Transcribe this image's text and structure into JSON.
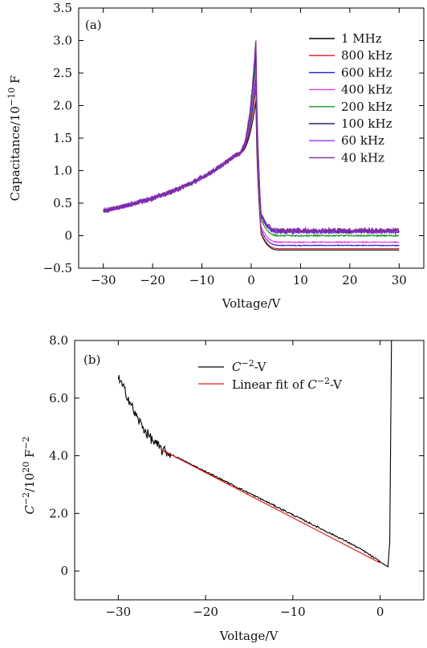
{
  "chart_data": [
    {
      "panel": "(a)",
      "type": "line",
      "xlabel": "Voltage/V",
      "ylabel_main": "Capacitance/10",
      "ylabel_exp": "−10",
      "ylabel_unit": " F",
      "xlim": [
        -35,
        35
      ],
      "ylim": [
        -0.5,
        3.5
      ],
      "xticks": [
        -30,
        -20,
        -10,
        0,
        10,
        20,
        30
      ],
      "xtick_labels": [
        "−30",
        "−20",
        "−10",
        "0",
        "10",
        "20",
        "30"
      ],
      "yticks": [
        -0.5,
        0,
        0.5,
        1.0,
        1.5,
        2.0,
        2.5,
        3.0,
        3.5
      ],
      "ytick_labels": [
        "−0.5",
        "0",
        "0.5",
        "1.0",
        "1.5",
        "2.0",
        "2.5",
        "3.0",
        "3.5"
      ],
      "legend_position": "top-right",
      "series": [
        {
          "name": "1 MHz",
          "color": "#000000",
          "peak": 2.1,
          "plateau": -0.22,
          "noise": 0.0
        },
        {
          "name": "800 kHz",
          "color": "#e41a1c",
          "peak": 2.3,
          "plateau": -0.2,
          "noise": 0.0
        },
        {
          "name": "600 kHz",
          "color": "#1f1fd6",
          "peak": 2.45,
          "plateau": -0.15,
          "noise": 0.005
        },
        {
          "name": "400 kHz",
          "color": "#e83ee8",
          "peak": 2.6,
          "plateau": -0.1,
          "noise": 0.008
        },
        {
          "name": "200 kHz",
          "color": "#1a9a2c",
          "peak": 2.75,
          "plateau": 0.0,
          "noise": 0.01
        },
        {
          "name": "100 kHz",
          "color": "#25256e",
          "peak": 2.9,
          "plateau": 0.06,
          "noise": 0.025
        },
        {
          "name": "60 kHz",
          "color": "#9b30ff",
          "peak": 3.0,
          "plateau": 0.07,
          "noise": 0.035
        },
        {
          "name": "40 kHz",
          "color": "#7b2d9a",
          "peak": 3.08,
          "plateau": 0.08,
          "noise": 0.04
        }
      ],
      "shape": {
        "v_start": -30,
        "v_end": 30,
        "v_peak": 1.0,
        "c_at_minus30": 0.38,
        "c_at_minus20": 0.57,
        "c_at_minus10": 0.82,
        "c_at_minus3": 1.25
      }
    },
    {
      "panel": "(b)",
      "type": "line",
      "xlabel": "Voltage/V",
      "ylabel_main": "C",
      "ylabel_exp1": "−2",
      "ylabel_mid": "/10",
      "ylabel_exp2": "20",
      "ylabel_unit": " F",
      "ylabel_exp3": "−2",
      "xlim": [
        -35,
        5
      ],
      "ylim": [
        -1,
        8
      ],
      "xticks": [
        -30,
        -20,
        -10,
        0
      ],
      "xtick_labels": [
        "−30",
        "−20",
        "−10",
        "0"
      ],
      "yticks": [
        0,
        2,
        4,
        6,
        8
      ],
      "ytick_labels": [
        "0",
        "2.0",
        "4.0",
        "6.0",
        "8.0"
      ],
      "legend_position": "top-right",
      "legend": [
        {
          "label_main": "C",
          "label_exp": "−2",
          "label_tail": "-V",
          "prefix": "",
          "color": "#000000"
        },
        {
          "label_main": "C",
          "label_exp": "−2",
          "label_tail": "-V",
          "prefix": "Linear fit of ",
          "color": "#e41a1c"
        }
      ],
      "series": [
        {
          "name": "data",
          "color": "#000000",
          "x": [
            -30,
            -29,
            -28,
            -27,
            -26,
            -25,
            -24,
            -22,
            -20,
            -18,
            -16,
            -14,
            -12,
            -10,
            -8,
            -6,
            -4,
            -2,
            0,
            0.5,
            0.9,
            1.1,
            1.3
          ],
          "y": [
            6.7,
            6.1,
            5.4,
            4.9,
            4.5,
            4.2,
            4.05,
            3.75,
            3.45,
            3.15,
            2.85,
            2.55,
            2.25,
            1.95,
            1.65,
            1.35,
            1.05,
            0.72,
            0.32,
            0.22,
            0.15,
            1.0,
            8.0
          ],
          "noise": 0.08
        },
        {
          "name": "fit",
          "color": "#e41a1c",
          "x": [
            -25,
            0
          ],
          "y": [
            4.2,
            0.28
          ]
        }
      ]
    }
  ]
}
